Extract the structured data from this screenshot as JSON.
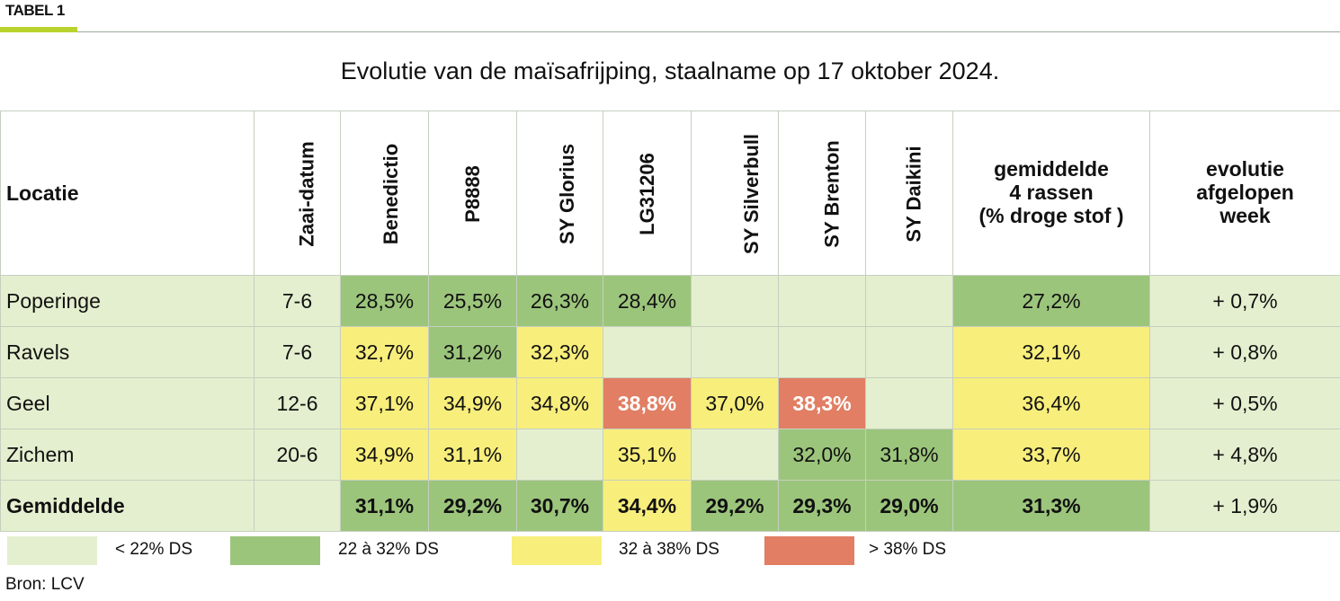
{
  "tag": "TABEL 1",
  "title": "Evolutie van de maïsafrijping, staalname op 17 oktober 2024.",
  "headers": {
    "locatie": "Locatie",
    "zaai": "Zaai-datum",
    "v1": "Benedictio",
    "v2": "P8888",
    "v3": "SY Glorius",
    "v4": "LG31206",
    "v5": "SY Silverbull",
    "v6": "SY Brenton",
    "v7": "SY Daikini",
    "gem_l1": "gemiddelde",
    "gem_l2": "4 rassen",
    "gem_l3": "(% droge stof )",
    "evo_l1": "evolutie",
    "evo_l2": "afgelopen",
    "evo_l3": "week"
  },
  "rows": [
    {
      "loc": "Poperinge",
      "zaai": "7-6",
      "v1": "28,5%",
      "v2": "25,5%",
      "v3": "26,3%",
      "v4": "28,4%",
      "v5": "",
      "v6": "",
      "v7": "",
      "gem": "27,2%",
      "evo": "+ 0,7%"
    },
    {
      "loc": "Ravels",
      "zaai": "7-6",
      "v1": "32,7%",
      "v2": "31,2%",
      "v3": "32,3%",
      "v4": "",
      "v5": "",
      "v6": "",
      "v7": "",
      "gem": "32,1%",
      "evo": "+ 0,8%"
    },
    {
      "loc": "Geel",
      "zaai": "12-6",
      "v1": "37,1%",
      "v2": "34,9%",
      "v3": "34,8%",
      "v4": "38,8%",
      "v5": "37,0%",
      "v6": "38,3%",
      "v7": "",
      "gem": "36,4%",
      "evo": "+ 0,5%"
    },
    {
      "loc": "Zichem",
      "zaai": "20-6",
      "v1": "34,9%",
      "v2": "31,1%",
      "v3": "",
      "v4": "35,1%",
      "v5": "",
      "v6": "32,0%",
      "v7": "31,8%",
      "gem": "33,7%",
      "evo": "+ 4,8%"
    },
    {
      "loc": "Gemiddelde",
      "zaai": "",
      "v1": "31,1%",
      "v2": "29,2%",
      "v3": "30,7%",
      "v4": "34,4%",
      "v5": "29,2%",
      "v6": "29,3%",
      "v7": "29,0%",
      "gem": "31,3%",
      "evo": "+ 1,9%"
    }
  ],
  "legend": [
    {
      "label": "< 22% DS",
      "color": "#e4efcf"
    },
    {
      "label": "22 à 32% DS",
      "color": "#9cc57c"
    },
    {
      "label": "32 à 38% DS",
      "color": "#f8ee7c"
    },
    {
      "label": "> 38% DS",
      "color": "#e17e63"
    }
  ],
  "source": "Bron: LCV"
}
